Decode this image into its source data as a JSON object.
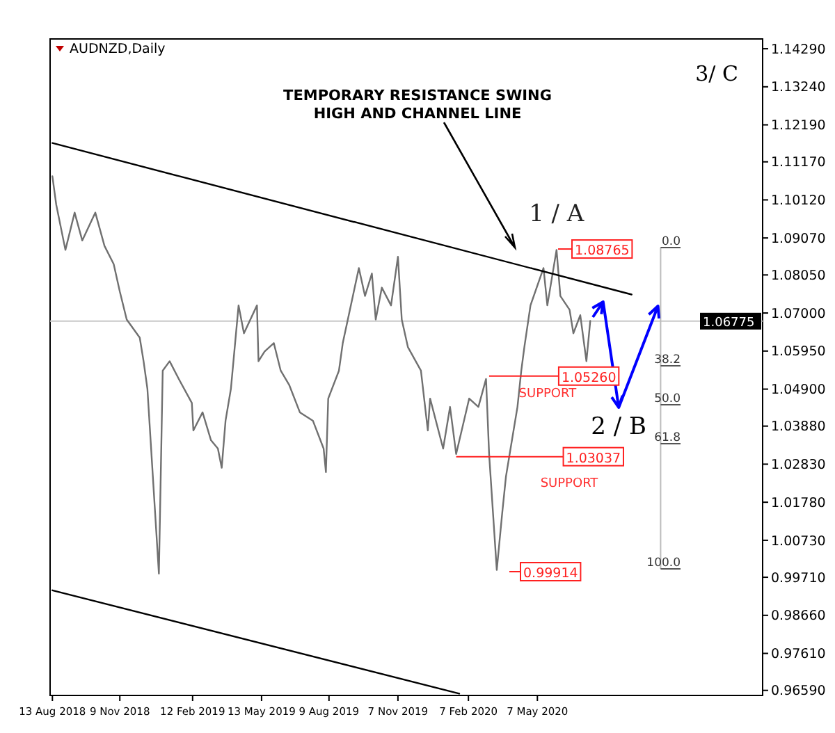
{
  "chart_data": {
    "type": "line",
    "title": "AUDNZD,Daily",
    "xlim": [
      "2018-08-10",
      "2021-02-25"
    ],
    "xticks": [
      {
        "value": "2018-08-13",
        "label": "13 Aug 2018"
      },
      {
        "value": "2018-11-09",
        "label": "9 Nov 2018"
      },
      {
        "value": "2019-02-12",
        "label": "12 Feb 2019"
      },
      {
        "value": "2019-05-13",
        "label": "13 May 2019"
      },
      {
        "value": "2019-08-09",
        "label": "9 Aug 2019"
      },
      {
        "value": "2019-11-07",
        "label": "7 Nov 2019"
      },
      {
        "value": "2020-02-07",
        "label": "7 Feb 2020"
      },
      {
        "value": "2020-05-07",
        "label": "7 May 2020"
      }
    ],
    "ylim": [
      0.9645,
      1.1456
    ],
    "yticks": [
      {
        "value": 1.1429,
        "label": "1.14290"
      },
      {
        "value": 1.1324,
        "label": "1.13240"
      },
      {
        "value": 1.1219,
        "label": "1.12190"
      },
      {
        "value": 1.1117,
        "label": "1.11170"
      },
      {
        "value": 1.1012,
        "label": "1.10120"
      },
      {
        "value": 1.0907,
        "label": "1.09070"
      },
      {
        "value": 1.0805,
        "label": "1.08050"
      },
      {
        "value": 1.07,
        "label": "1.07000"
      },
      {
        "value": 1.0595,
        "label": "1.05950"
      },
      {
        "value": 1.049,
        "label": "1.04900"
      },
      {
        "value": 1.0388,
        "label": "1.03880"
      },
      {
        "value": 1.0283,
        "label": "1.02830"
      },
      {
        "value": 1.0178,
        "label": "1.01780"
      },
      {
        "value": 1.0073,
        "label": "1.00730"
      },
      {
        "value": 0.9971,
        "label": "0.99710"
      },
      {
        "value": 0.9866,
        "label": "0.98660"
      },
      {
        "value": 0.9761,
        "label": "0.97610"
      },
      {
        "value": 0.9659,
        "label": "0.96590"
      }
    ],
    "series": [
      {
        "color": "#707070",
        "x": [
          "2018-08-13",
          "2018-08-18",
          "2018-08-30",
          "2018-09-11",
          "2018-09-21",
          "2018-10-08",
          "2018-10-20",
          "2018-11-01",
          "2018-11-09",
          "2018-11-18",
          "2018-12-05",
          "2018-12-10",
          "2018-12-15",
          "2018-12-30",
          "2019-01-04",
          "2019-01-13",
          "2019-01-25",
          "2019-02-11",
          "2019-02-13",
          "2019-02-25",
          "2019-03-08",
          "2019-03-17",
          "2019-03-22",
          "2019-03-27",
          "2019-04-03",
          "2019-04-13",
          "2019-04-20",
          "2019-05-07",
          "2019-05-09",
          "2019-05-17",
          "2019-05-29",
          "2019-06-07",
          "2019-06-18",
          "2019-07-02",
          "2019-07-19",
          "2019-08-02",
          "2019-08-05",
          "2019-08-08",
          "2019-08-22",
          "2019-08-27",
          "2019-09-17",
          "2019-09-25",
          "2019-10-04",
          "2019-10-09",
          "2019-10-17",
          "2019-10-29",
          "2019-11-07",
          "2019-11-12",
          "2019-11-20",
          "2019-12-07",
          "2019-12-16",
          "2019-12-19",
          "2020-01-05",
          "2020-01-14",
          "2020-01-22",
          "2020-02-08",
          "2020-02-20",
          "2020-03-01",
          "2020-03-05",
          "2020-03-15",
          "2020-03-22",
          "2020-03-27",
          "2020-04-02",
          "2020-04-11",
          "2020-04-16",
          "2020-04-20",
          "2020-04-28",
          "2020-05-15",
          "2020-05-20",
          "2020-06-01",
          "2020-06-06",
          "2020-06-18",
          "2020-06-23",
          "2020-07-02",
          "2020-07-10",
          "2020-07-15"
        ],
        "values": [
          1.1077,
          1.0999,
          1.0874,
          1.0977,
          1.09,
          1.0977,
          1.0885,
          1.0835,
          1.0759,
          1.0682,
          1.0632,
          1.0567,
          1.0491,
          0.9981,
          1.0541,
          1.0567,
          1.0518,
          1.0452,
          1.0376,
          1.0426,
          1.0349,
          1.0326,
          1.0273,
          1.0403,
          1.0491,
          1.0721,
          1.0644,
          1.0721,
          1.0567,
          1.0594,
          1.0617,
          1.0541,
          1.0502,
          1.0426,
          1.0403,
          1.0326,
          1.0261,
          1.0464,
          1.0541,
          1.0617,
          1.0824,
          1.0747,
          1.0809,
          1.0682,
          1.077,
          1.0721,
          1.0855,
          1.0682,
          1.0606,
          1.0541,
          1.0376,
          1.0464,
          1.0326,
          1.0441,
          1.0311,
          1.0464,
          1.0441,
          1.0518,
          1.0311,
          0.9991,
          1.0146,
          1.0249,
          1.0326,
          1.0441,
          1.0541,
          1.0606,
          1.0721,
          1.0824,
          1.0721,
          1.0874,
          1.0747,
          1.0709,
          1.0644,
          1.0694,
          1.0567,
          1.0678
        ]
      },
      {
        "color": "#000000",
        "x": [
          "2018-08-13",
          "2020-09-07"
        ],
        "values": [
          1.1169,
          1.0751
        ]
      },
      {
        "color": "#000000",
        "x": [
          "2018-08-13",
          "2020-01-26"
        ],
        "values": [
          0.9935,
          0.965
        ]
      }
    ],
    "ref_lines": [
      {
        "axis": "y",
        "value": 1.06775,
        "label": "1.06775",
        "color": "#c8c8c8"
      }
    ],
    "annotations": [
      "TEMPORARY RESISTANCE SWING HIGH AND CHANNEL LINE",
      {
        "text": "1 / A",
        "x": "2020-06-01",
        "y": 1.08765
      },
      "2 / B",
      "3/ C",
      {
        "text": "1.08765",
        "x": "2020-06-03",
        "y": 1.08765
      },
      {
        "text": "1.05260",
        "x": "2020-03-05",
        "y": 1.0526
      },
      {
        "text": "SUPPORT",
        "x": "2020-03-05",
        "y": 1.0526
      },
      {
        "text": "1.03037",
        "x": "2020-01-22",
        "y": 1.03037
      },
      "SUPPORT",
      "0.99914",
      "0.0",
      "38.2",
      "50.0",
      "61.8",
      "100.0"
    ]
  }
}
